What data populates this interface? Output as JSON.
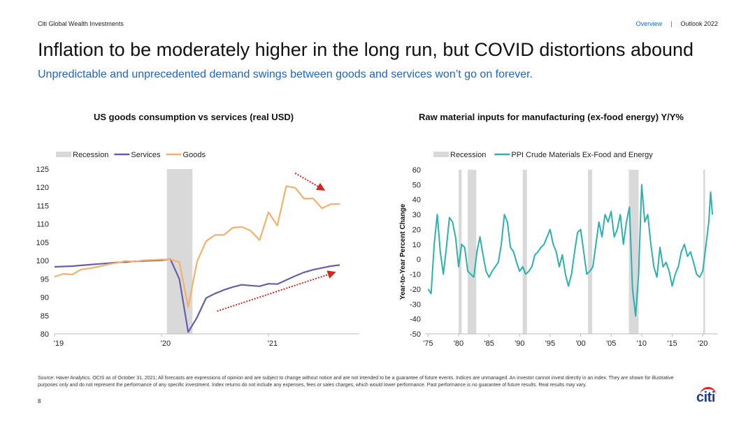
{
  "header": {
    "brand": "Citi Global Wealth Investments",
    "nav_overview": "Overview",
    "nav_separator": "|",
    "nav_outlook": "Outlook 2022"
  },
  "title": "Inflation to be moderately higher in the long run, but COVID distortions abound",
  "subtitle": "Unpredictable and unprecedented demand swings between goods and services won’t go on forever.",
  "footnote": "Source: Haver Analytics. OCIS as of October 31, 2021; All forecasts are expressions of opinion and are subject to change without notice and are not intended to be a guarantee of future events. Indices are unmanaged. An investor cannot invest directly in an index. They are shown for illustrative purposes only and do not represent the performance of any specific investment. Index returns do not include any expenses, fees or sales charges, which would lower performance. Past performance is no guarantee of future results. Real results may vary.",
  "page_number": "8",
  "logo_text": "citi",
  "colors": {
    "accent": "#1a66c9",
    "recession": "#d9d9d9",
    "services": "#6b5ea8",
    "goods": "#f5b06a",
    "ppi": "#2db0b0",
    "arrow": "#d0281e",
    "logo_blue": "#1c3f8e",
    "logo_red": "#e2231a"
  },
  "chart_data": [
    {
      "type": "line",
      "title": "US goods consumption vs services (real USD)",
      "legend": [
        "Recession",
        "Services",
        "Goods"
      ],
      "legend_position": "top-left",
      "ylim": [
        80,
        125
      ],
      "yticks": [
        80,
        85,
        90,
        95,
        100,
        105,
        110,
        115,
        120,
        125
      ],
      "xlim": [
        2019.0,
        2021.85
      ],
      "xticks": [
        {
          "value": 2019.0,
          "label": "'19"
        },
        {
          "value": 2020.0,
          "label": "'20"
        },
        {
          "value": 2021.0,
          "label": "'21"
        }
      ],
      "recessions": [
        [
          2020.05,
          2020.29
        ]
      ],
      "series": [
        {
          "name": "Services",
          "x": [
            2019.0,
            2019.083,
            2019.167,
            2019.25,
            2019.333,
            2019.417,
            2019.5,
            2019.583,
            2019.667,
            2019.75,
            2019.833,
            2019.917,
            2020.0,
            2020.083,
            2020.167,
            2020.25,
            2020.333,
            2020.417,
            2020.5,
            2020.583,
            2020.667,
            2020.75,
            2020.833,
            2020.917,
            2021.0,
            2021.083,
            2021.167,
            2021.25,
            2021.333,
            2021.417,
            2021.5,
            2021.583,
            2021.667
          ],
          "values": [
            98.3,
            98.4,
            98.5,
            98.7,
            98.9,
            99.1,
            99.3,
            99.5,
            99.6,
            99.8,
            99.9,
            100.0,
            100.1,
            100.4,
            95.0,
            80.5,
            84.5,
            89.8,
            91.0,
            92.0,
            92.8,
            93.4,
            93.2,
            93.0,
            93.7,
            93.6,
            94.7,
            95.8,
            96.8,
            97.5,
            98.0,
            98.5,
            98.8
          ]
        },
        {
          "name": "Goods",
          "x": [
            2019.0,
            2019.083,
            2019.167,
            2019.25,
            2019.333,
            2019.417,
            2019.5,
            2019.583,
            2019.667,
            2019.75,
            2019.833,
            2019.917,
            2020.0,
            2020.083,
            2020.167,
            2020.25,
            2020.333,
            2020.417,
            2020.5,
            2020.583,
            2020.667,
            2020.75,
            2020.833,
            2020.917,
            2021.0,
            2021.083,
            2021.167,
            2021.25,
            2021.333,
            2021.417,
            2021.5,
            2021.583,
            2021.667
          ],
          "values": [
            95.6,
            96.4,
            96.2,
            97.6,
            97.9,
            98.4,
            99.0,
            99.4,
            99.9,
            99.7,
            100.1,
            100.2,
            100.3,
            100.3,
            99.6,
            87.3,
            99.8,
            105.3,
            107.0,
            107.0,
            109.0,
            109.2,
            108.2,
            105.6,
            113.2,
            109.6,
            120.3,
            119.9,
            116.9,
            117.0,
            114.3,
            115.4,
            115.5
          ]
        }
      ],
      "annotations": [
        {
          "type": "dotted-arrow",
          "direction": "down-right"
        },
        {
          "type": "dotted-arrow",
          "direction": "up-right"
        }
      ]
    },
    {
      "type": "line",
      "title": "Raw material inputs for manufacturing (ex-food energy) Y/Y%",
      "ylabel": "Year-to-Year Percent Change",
      "legend": [
        "Recession",
        "PPI Crude Materials Ex-Food and Energy"
      ],
      "legend_position": "top-left",
      "ylim": [
        -50,
        60
      ],
      "yticks": [
        -50,
        -40,
        -30,
        -20,
        -10,
        0,
        10,
        20,
        30,
        40,
        50,
        60
      ],
      "xlim": [
        1974.5,
        2022.5
      ],
      "xticks": [
        {
          "value": 1975,
          "label": "'75"
        },
        {
          "value": 1980,
          "label": "'80"
        },
        {
          "value": 1985,
          "label": "'85"
        },
        {
          "value": 1990,
          "label": "'90"
        },
        {
          "value": 1995,
          "label": "'95"
        },
        {
          "value": 2000,
          "label": "'00"
        },
        {
          "value": 2005,
          "label": "'05"
        },
        {
          "value": 2010,
          "label": "'10"
        },
        {
          "value": 2015,
          "label": "'15"
        },
        {
          "value": 2020,
          "label": "'20"
        }
      ],
      "recessions": [
        [
          1980.0,
          1980.5
        ],
        [
          1981.5,
          1982.9
        ],
        [
          1990.5,
          1991.2
        ],
        [
          2001.2,
          2001.9
        ],
        [
          2007.9,
          2009.5
        ],
        [
          2020.1,
          2020.4
        ]
      ],
      "series": [
        {
          "name": "PPI Crude Materials Ex-Food and Energy",
          "x": [
            1975,
            1975.5,
            1976,
            1976.5,
            1977,
            1977.5,
            1978,
            1978.5,
            1979,
            1979.5,
            1980,
            1980.5,
            1981,
            1981.5,
            1982,
            1982.5,
            1983,
            1983.5,
            1984,
            1984.5,
            1985,
            1985.5,
            1986,
            1986.5,
            1987,
            1987.5,
            1988,
            1988.5,
            1989,
            1989.5,
            1990,
            1990.5,
            1991,
            1991.5,
            1992,
            1992.5,
            1993,
            1993.5,
            1994,
            1994.5,
            1995,
            1995.5,
            1996,
            1996.5,
            1997,
            1997.5,
            1998,
            1998.5,
            1999,
            1999.5,
            2000,
            2000.5,
            2001,
            2001.5,
            2002,
            2002.5,
            2003,
            2003.5,
            2004,
            2004.5,
            2005,
            2005.5,
            2006,
            2006.5,
            2007,
            2007.5,
            2008,
            2008.5,
            2009,
            2009.5,
            2010,
            2010.5,
            2011,
            2011.5,
            2012,
            2012.5,
            2013,
            2013.5,
            2014,
            2014.5,
            2015,
            2015.5,
            2016,
            2016.5,
            2017,
            2017.5,
            2018,
            2018.5,
            2019,
            2019.5,
            2020,
            2020.5,
            2021,
            2021.3,
            2021.6
          ],
          "values": [
            -20,
            -23,
            10,
            30,
            5,
            -10,
            8,
            28,
            25,
            15,
            -5,
            10,
            8,
            -8,
            -10,
            -12,
            5,
            15,
            3,
            -8,
            -12,
            -8,
            -5,
            -2,
            10,
            30,
            25,
            8,
            5,
            -2,
            -8,
            -5,
            -10,
            -8,
            -5,
            3,
            5,
            8,
            10,
            15,
            20,
            10,
            5,
            -5,
            3,
            -10,
            -18,
            -10,
            5,
            18,
            20,
            5,
            -10,
            -8,
            -5,
            10,
            25,
            15,
            30,
            25,
            32,
            15,
            20,
            30,
            10,
            25,
            35,
            -20,
            -38,
            -10,
            50,
            25,
            30,
            10,
            -5,
            -12,
            8,
            -5,
            -2,
            -8,
            -18,
            -10,
            -5,
            5,
            10,
            2,
            5,
            -2,
            -10,
            -12,
            -8,
            8,
            25,
            45,
            30
          ]
        }
      ],
      "annotations": []
    }
  ]
}
